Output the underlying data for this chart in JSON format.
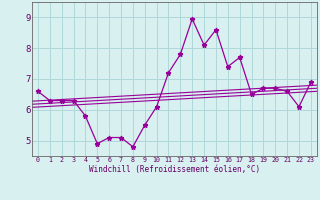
{
  "x": [
    0,
    1,
    2,
    3,
    4,
    5,
    6,
    7,
    8,
    9,
    10,
    11,
    12,
    13,
    14,
    15,
    16,
    17,
    18,
    19,
    20,
    21,
    22,
    23
  ],
  "y_main": [
    6.6,
    6.3,
    6.3,
    6.3,
    5.8,
    4.9,
    5.1,
    5.1,
    4.8,
    5.5,
    6.1,
    7.2,
    7.8,
    8.95,
    8.1,
    8.6,
    7.4,
    7.7,
    6.5,
    6.7,
    6.7,
    6.6,
    6.1,
    6.9
  ],
  "bg_color": "#d8f0f0",
  "grid_color": "#b0d8d8",
  "line_color": "#990099",
  "marker_color": "#990099",
  "xlabel": "Windchill (Refroidissement éolien,°C)",
  "ylim": [
    4.5,
    9.5
  ],
  "xlim": [
    -0.5,
    23.5
  ],
  "yticks": [
    5,
    6,
    7,
    8,
    9
  ],
  "xticks": [
    0,
    1,
    2,
    3,
    4,
    5,
    6,
    7,
    8,
    9,
    10,
    11,
    12,
    13,
    14,
    15,
    16,
    17,
    18,
    19,
    20,
    21,
    22,
    23
  ],
  "trend1": [
    6.08,
    6.6
  ],
  "trend2": [
    6.18,
    6.7
  ],
  "trend3": [
    6.28,
    6.8
  ]
}
